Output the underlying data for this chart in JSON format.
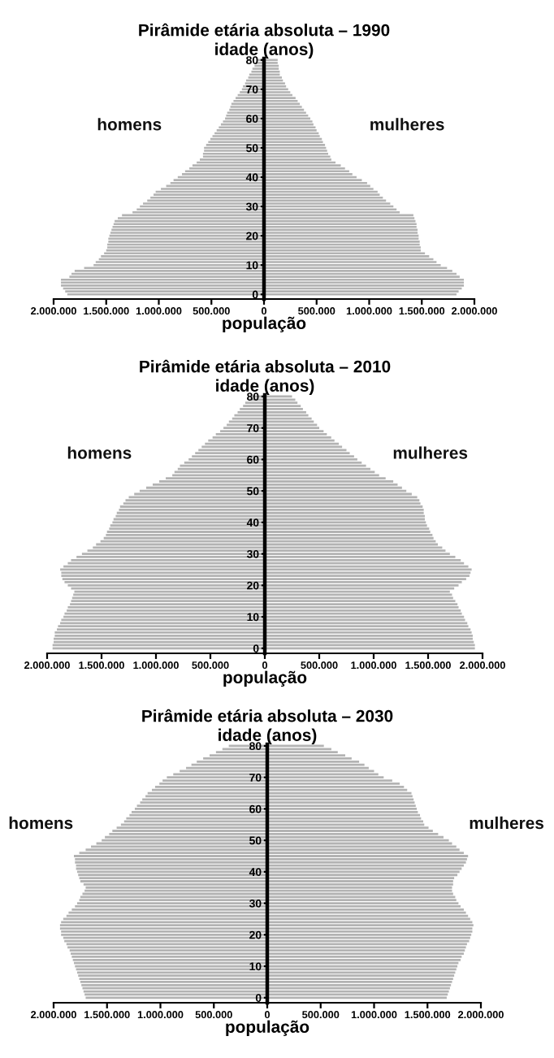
{
  "chart_data": [
    {
      "type": "bar",
      "orientation": "horizontal",
      "title": "Pirâmide etária absoluta – 1990",
      "ylabel": "idade (anos)",
      "xlabel": "população",
      "legend": false,
      "grid": false,
      "categories": [
        "80",
        null,
        null,
        null,
        null,
        null,
        null,
        null,
        null,
        null,
        "70",
        null,
        null,
        null,
        null,
        null,
        null,
        null,
        null,
        null,
        "60",
        null,
        null,
        null,
        null,
        null,
        null,
        null,
        null,
        null,
        "50",
        null,
        null,
        null,
        null,
        null,
        null,
        null,
        null,
        null,
        "40",
        null,
        null,
        null,
        null,
        null,
        null,
        null,
        null,
        null,
        "30",
        null,
        null,
        null,
        null,
        null,
        null,
        null,
        null,
        null,
        "20",
        null,
        null,
        null,
        null,
        null,
        null,
        null,
        null,
        null,
        "10",
        null,
        null,
        null,
        null,
        null,
        null,
        null,
        null,
        null,
        "0"
      ],
      "xlim": [
        -2000000,
        2000000
      ],
      "xticks": [
        {
          "value": -2000000,
          "label": "2.000.000"
        },
        {
          "value": -1500000,
          "label": "1.500.000"
        },
        {
          "value": -1000000,
          "label": "1.000.000"
        },
        {
          "value": -500000,
          "label": "500.000"
        },
        0,
        {
          "value": 500000,
          "label": "500.000"
        },
        {
          "value": 1000000,
          "label": "1.000.000"
        },
        {
          "value": 1500000,
          "label": "1.500.000"
        },
        {
          "value": 2000000,
          "label": "2.000.000"
        }
      ],
      "series": [
        {
          "name": "homens",
          "color": "#b3b3b3",
          "values": [
            -60000,
            -80000,
            -90000,
            -110000,
            -120000,
            -140000,
            -150000,
            -170000,
            -180000,
            -200000,
            -210000,
            -230000,
            -250000,
            -270000,
            -290000,
            -310000,
            -320000,
            -330000,
            -350000,
            -360000,
            -370000,
            -390000,
            -410000,
            -430000,
            -450000,
            -470000,
            -490000,
            -510000,
            -530000,
            -550000,
            -570000,
            -570000,
            -580000,
            -580000,
            -610000,
            -640000,
            -680000,
            -710000,
            -750000,
            -780000,
            -820000,
            -860000,
            -890000,
            -930000,
            -980000,
            -1030000,
            -1050000,
            -1080000,
            -1110000,
            -1150000,
            -1180000,
            -1210000,
            -1250000,
            -1350000,
            -1390000,
            -1420000,
            -1430000,
            -1440000,
            -1450000,
            -1460000,
            -1470000,
            -1480000,
            -1480000,
            -1490000,
            -1490000,
            -1500000,
            -1520000,
            -1550000,
            -1570000,
            -1600000,
            -1620000,
            -1710000,
            -1800000,
            -1830000,
            -1850000,
            -1930000,
            -1930000,
            -1930000,
            -1910000,
            -1890000,
            -1870000
          ]
        },
        {
          "name": "mulheres",
          "color": "#b3b3b3",
          "values": [
            130000,
            130000,
            140000,
            140000,
            150000,
            150000,
            170000,
            180000,
            200000,
            210000,
            230000,
            250000,
            270000,
            300000,
            320000,
            340000,
            360000,
            380000,
            400000,
            420000,
            440000,
            460000,
            470000,
            490000,
            500000,
            520000,
            530000,
            550000,
            560000,
            580000,
            590000,
            600000,
            610000,
            630000,
            640000,
            680000,
            730000,
            770000,
            810000,
            840000,
            880000,
            930000,
            980000,
            1010000,
            1040000,
            1080000,
            1100000,
            1130000,
            1160000,
            1200000,
            1230000,
            1260000,
            1290000,
            1420000,
            1430000,
            1440000,
            1450000,
            1450000,
            1460000,
            1460000,
            1470000,
            1470000,
            1480000,
            1480000,
            1490000,
            1490000,
            1530000,
            1570000,
            1610000,
            1640000,
            1680000,
            1740000,
            1790000,
            1830000,
            1860000,
            1900000,
            1900000,
            1900000,
            1880000,
            1850000,
            1830000
          ]
        }
      ]
    },
    {
      "type": "bar",
      "orientation": "horizontal",
      "title": "Pirâmide etária absoluta – 2010",
      "ylabel": "idade (anos)",
      "xlabel": "população",
      "legend": false,
      "grid": false,
      "categories": [
        "80",
        null,
        null,
        null,
        null,
        null,
        null,
        null,
        null,
        null,
        "70",
        null,
        null,
        null,
        null,
        null,
        null,
        null,
        null,
        null,
        "60",
        null,
        null,
        null,
        null,
        null,
        null,
        null,
        null,
        null,
        "50",
        null,
        null,
        null,
        null,
        null,
        null,
        null,
        null,
        null,
        "40",
        null,
        null,
        null,
        null,
        null,
        null,
        null,
        null,
        null,
        "30",
        null,
        null,
        null,
        null,
        null,
        null,
        null,
        null,
        null,
        "20",
        null,
        null,
        null,
        null,
        null,
        null,
        null,
        null,
        null,
        "10",
        null,
        null,
        null,
        null,
        null,
        null,
        null,
        null,
        null,
        "0"
      ],
      "xlim": [
        -2000000,
        2000000
      ],
      "xticks": [
        {
          "value": -2000000,
          "label": "2.000.000"
        },
        {
          "value": -1500000,
          "label": "1.500.000"
        },
        {
          "value": -1000000,
          "label": "1.000.000"
        },
        {
          "value": -500000,
          "label": "500.000"
        },
        0,
        {
          "value": 500000,
          "label": "500.000"
        },
        {
          "value": 1000000,
          "label": "1.000.000"
        },
        {
          "value": 1500000,
          "label": "1.500.000"
        },
        {
          "value": 2000000,
          "label": "2.000.000"
        }
      ],
      "series": [
        {
          "name": "homens",
          "color": "#b3b3b3",
          "values": [
            -130000,
            -150000,
            -180000,
            -200000,
            -230000,
            -250000,
            -280000,
            -300000,
            -330000,
            -350000,
            -380000,
            -410000,
            -450000,
            -480000,
            -520000,
            -550000,
            -580000,
            -610000,
            -640000,
            -670000,
            -700000,
            -740000,
            -780000,
            -800000,
            -830000,
            -850000,
            -910000,
            -970000,
            -1030000,
            -1090000,
            -1150000,
            -1200000,
            -1250000,
            -1280000,
            -1300000,
            -1330000,
            -1340000,
            -1360000,
            -1370000,
            -1390000,
            -1400000,
            -1420000,
            -1430000,
            -1450000,
            -1460000,
            -1480000,
            -1510000,
            -1550000,
            -1580000,
            -1630000,
            -1680000,
            -1730000,
            -1780000,
            -1810000,
            -1850000,
            -1880000,
            -1870000,
            -1870000,
            -1860000,
            -1840000,
            -1810000,
            -1780000,
            -1750000,
            -1760000,
            -1770000,
            -1780000,
            -1790000,
            -1810000,
            -1820000,
            -1840000,
            -1850000,
            -1870000,
            -1880000,
            -1900000,
            -1910000,
            -1930000,
            -1930000,
            -1940000,
            -1940000,
            -1950000,
            -1950000
          ]
        },
        {
          "name": "mulheres",
          "color": "#b3b3b3",
          "values": [
            250000,
            280000,
            300000,
            330000,
            350000,
            380000,
            400000,
            430000,
            450000,
            480000,
            500000,
            540000,
            570000,
            610000,
            640000,
            680000,
            710000,
            750000,
            780000,
            820000,
            850000,
            890000,
            930000,
            970000,
            1010000,
            1050000,
            1110000,
            1180000,
            1220000,
            1260000,
            1300000,
            1350000,
            1400000,
            1420000,
            1430000,
            1450000,
            1460000,
            1460000,
            1470000,
            1470000,
            1480000,
            1490000,
            1510000,
            1520000,
            1540000,
            1550000,
            1570000,
            1590000,
            1630000,
            1660000,
            1700000,
            1750000,
            1800000,
            1830000,
            1870000,
            1900000,
            1890000,
            1880000,
            1850000,
            1810000,
            1780000,
            1740000,
            1700000,
            1720000,
            1730000,
            1750000,
            1770000,
            1780000,
            1800000,
            1810000,
            1830000,
            1840000,
            1860000,
            1870000,
            1890000,
            1900000,
            1910000,
            1910000,
            1920000,
            1930000,
            1930000
          ]
        }
      ]
    },
    {
      "type": "bar",
      "orientation": "horizontal",
      "title": "Pirâmide etária absoluta – 2030",
      "ylabel": "idade (anos)",
      "xlabel": "população",
      "legend": false,
      "grid": false,
      "categories": [
        "80",
        null,
        null,
        null,
        null,
        null,
        null,
        null,
        null,
        null,
        "70",
        null,
        null,
        null,
        null,
        null,
        null,
        null,
        null,
        null,
        "60",
        null,
        null,
        null,
        null,
        null,
        null,
        null,
        null,
        null,
        "50",
        null,
        null,
        null,
        null,
        null,
        null,
        null,
        null,
        null,
        "40",
        null,
        null,
        null,
        null,
        null,
        null,
        null,
        null,
        null,
        "30",
        null,
        null,
        null,
        null,
        null,
        null,
        null,
        null,
        null,
        "20",
        null,
        null,
        null,
        null,
        null,
        null,
        null,
        null,
        null,
        "10",
        null,
        null,
        null,
        null,
        null,
        null,
        null,
        null,
        null,
        "0"
      ],
      "xlim": [
        -2000000,
        2000000
      ],
      "xticks": [
        {
          "value": -2000000,
          "label": "2.000.000"
        },
        {
          "value": -1500000,
          "label": "1.500.000"
        },
        {
          "value": -1000000,
          "label": "1.000.000"
        },
        {
          "value": -500000,
          "label": "500.000"
        },
        0,
        {
          "value": 500000,
          "label": "500.000"
        },
        {
          "value": 1000000,
          "label": "1.000.000"
        },
        {
          "value": 1500000,
          "label": "1.500.000"
        },
        {
          "value": 2000000,
          "label": "2.000.000"
        }
      ],
      "series": [
        {
          "name": "homens",
          "color": "#b3b3b3",
          "values": [
            -360000,
            -420000,
            -480000,
            -540000,
            -600000,
            -660000,
            -710000,
            -760000,
            -820000,
            -880000,
            -940000,
            -980000,
            -1010000,
            -1050000,
            -1080000,
            -1120000,
            -1140000,
            -1170000,
            -1190000,
            -1220000,
            -1240000,
            -1270000,
            -1290000,
            -1320000,
            -1340000,
            -1370000,
            -1410000,
            -1450000,
            -1480000,
            -1520000,
            -1550000,
            -1600000,
            -1650000,
            -1700000,
            -1760000,
            -1810000,
            -1800000,
            -1800000,
            -1790000,
            -1790000,
            -1780000,
            -1770000,
            -1760000,
            -1750000,
            -1720000,
            -1700000,
            -1710000,
            -1730000,
            -1750000,
            -1760000,
            -1780000,
            -1800000,
            -1830000,
            -1860000,
            -1880000,
            -1910000,
            -1930000,
            -1940000,
            -1940000,
            -1930000,
            -1930000,
            -1910000,
            -1900000,
            -1880000,
            -1870000,
            -1850000,
            -1840000,
            -1830000,
            -1820000,
            -1810000,
            -1800000,
            -1790000,
            -1780000,
            -1770000,
            -1760000,
            -1750000,
            -1740000,
            -1730000,
            -1720000,
            -1710000,
            -1700000
          ]
        },
        {
          "name": "mulheres",
          "color": "#b3b3b3",
          "values": [
            530000,
            600000,
            660000,
            730000,
            790000,
            860000,
            910000,
            950000,
            1000000,
            1040000,
            1090000,
            1170000,
            1240000,
            1280000,
            1310000,
            1350000,
            1360000,
            1370000,
            1380000,
            1390000,
            1400000,
            1410000,
            1430000,
            1440000,
            1460000,
            1470000,
            1510000,
            1550000,
            1600000,
            1650000,
            1700000,
            1730000,
            1770000,
            1800000,
            1840000,
            1880000,
            1870000,
            1860000,
            1840000,
            1820000,
            1800000,
            1780000,
            1750000,
            1740000,
            1740000,
            1730000,
            1730000,
            1740000,
            1760000,
            1770000,
            1790000,
            1810000,
            1840000,
            1860000,
            1880000,
            1900000,
            1920000,
            1930000,
            1920000,
            1920000,
            1910000,
            1900000,
            1890000,
            1870000,
            1860000,
            1850000,
            1840000,
            1820000,
            1810000,
            1790000,
            1780000,
            1770000,
            1760000,
            1750000,
            1740000,
            1730000,
            1720000,
            1710000,
            1700000,
            1690000,
            1680000
          ]
        }
      ]
    }
  ]
}
